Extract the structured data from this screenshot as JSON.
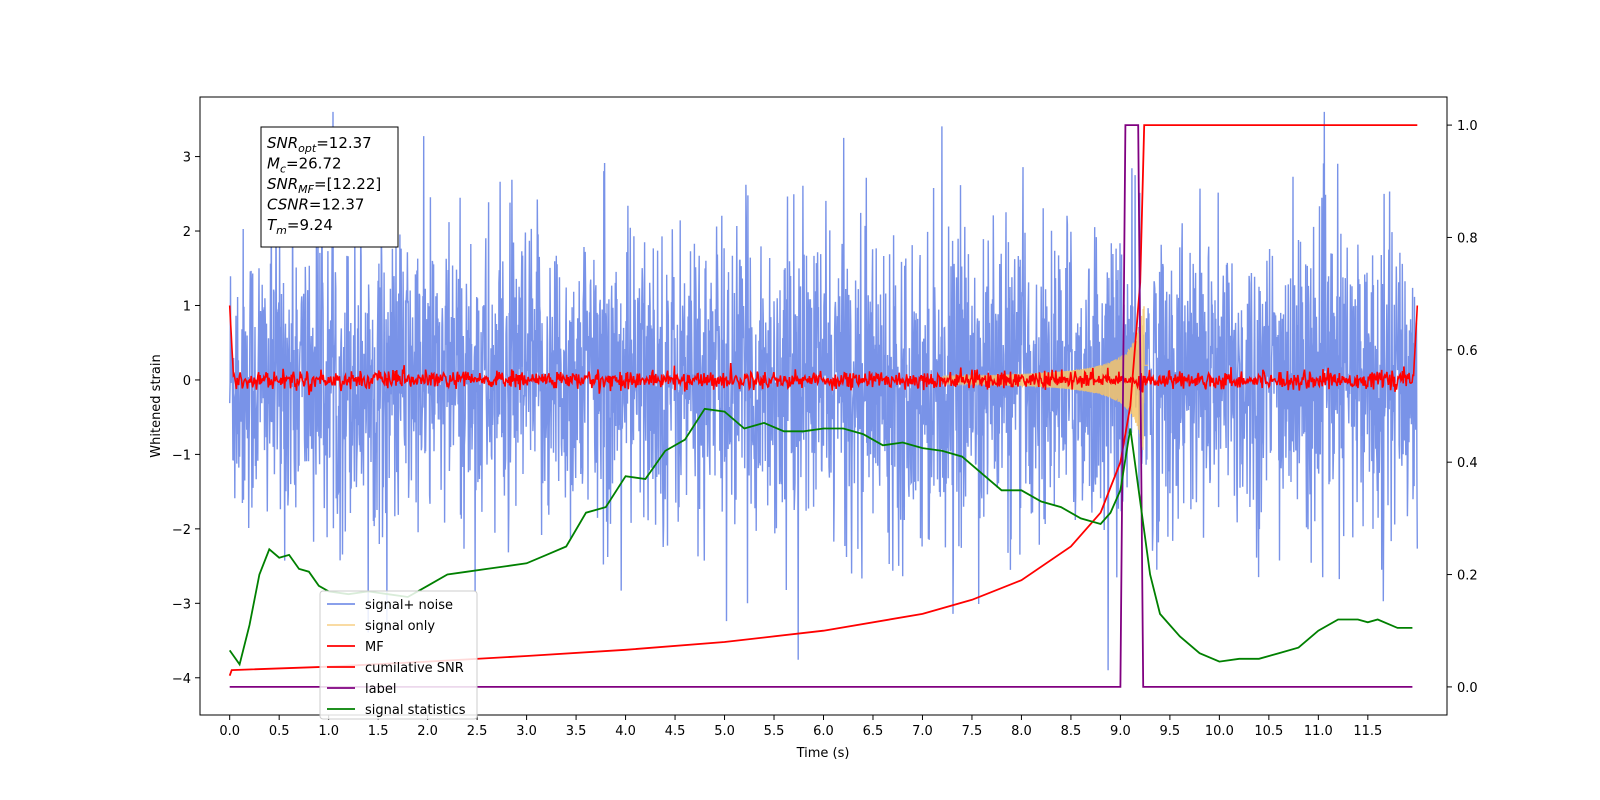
{
  "chart_data": {
    "type": "line",
    "xlabel": "Time (s)",
    "ylabel": "Whitened strain",
    "x_ticks": [
      "0.0",
      "0.5",
      "1.0",
      "1.5",
      "2.0",
      "2.5",
      "3.0",
      "3.5",
      "4.0",
      "4.5",
      "5.0",
      "5.5",
      "6.0",
      "6.5",
      "7.0",
      "7.5",
      "8.0",
      "8.5",
      "9.0",
      "9.5",
      "10.0",
      "10.5",
      "11.0",
      "11.5"
    ],
    "y_ticks_left": [
      "−4",
      "−3",
      "−2",
      "−1",
      "0",
      "1",
      "2",
      "3"
    ],
    "y_ticks_right": [
      "0.0",
      "0.2",
      "0.4",
      "0.6",
      "0.8",
      "1.0"
    ],
    "xlim": [
      -0.3,
      12.3
    ],
    "ylim_left": [
      -4.5,
      3.8
    ],
    "ylim_right": [
      -0.05,
      1.05
    ],
    "info_box": [
      {
        "base": "SNR",
        "sub": "opt",
        "rest": "=12.37"
      },
      {
        "base": "M",
        "sub": "c",
        "rest": "=26.72"
      },
      {
        "base": "SNR",
        "sub": "MF",
        "rest": "=[12.22]"
      },
      {
        "base": "CSNR",
        "sub": "",
        "rest": "=12.37"
      },
      {
        "base": "T",
        "sub": "m",
        "rest": "=9.24"
      }
    ],
    "series": [
      {
        "name": "signal+ noise",
        "color": "#6a87e6",
        "axis": "left",
        "desc": "whitened noise + signal, ~N(0,1), 0-12 s"
      },
      {
        "name": "signal only",
        "color": "#f5c46a",
        "axis": "left",
        "desc": "chirp growing toward merger at ~9.24 s"
      },
      {
        "name": "MF",
        "color": "#ff0000",
        "axis": "left",
        "desc": "matched-filter output, near 0, spikes to 1 at edges"
      },
      {
        "name": "cumilative SNR",
        "color": "#ff0000",
        "axis": "right",
        "x": [
          0.0,
          0.02,
          1,
          2,
          3,
          4,
          5,
          6,
          7,
          7.5,
          8,
          8.5,
          8.8,
          9.0,
          9.1,
          9.2,
          9.24,
          12.0
        ],
        "values": [
          0.02,
          0.03,
          0.036,
          0.045,
          0.055,
          0.066,
          0.08,
          0.1,
          0.13,
          0.155,
          0.19,
          0.25,
          0.31,
          0.4,
          0.5,
          0.72,
          1.0,
          1.0
        ]
      },
      {
        "name": "label",
        "color": "#800080",
        "axis": "right",
        "x": [
          0.0,
          9.0,
          9.05,
          9.18,
          9.23,
          11.95
        ],
        "values": [
          0,
          0,
          1,
          1,
          0,
          0
        ]
      },
      {
        "name": "signal statistics",
        "color": "#008000",
        "axis": "right",
        "x": [
          0.0,
          0.1,
          0.2,
          0.3,
          0.4,
          0.5,
          0.6,
          0.7,
          0.8,
          0.9,
          1.0,
          1.2,
          1.4,
          1.6,
          1.8,
          2.0,
          2.2,
          2.4,
          2.6,
          2.8,
          3.0,
          3.2,
          3.4,
          3.6,
          3.8,
          4.0,
          4.2,
          4.4,
          4.6,
          4.8,
          5.0,
          5.2,
          5.4,
          5.6,
          5.8,
          6.0,
          6.2,
          6.4,
          6.6,
          6.8,
          7.0,
          7.2,
          7.4,
          7.6,
          7.8,
          8.0,
          8.2,
          8.4,
          8.6,
          8.8,
          8.9,
          9.0,
          9.1,
          9.2,
          9.3,
          9.4,
          9.5,
          9.6,
          9.8,
          10.0,
          10.2,
          10.4,
          10.6,
          10.8,
          11.0,
          11.2,
          11.4,
          11.5,
          11.6,
          11.8,
          11.95
        ],
        "values": [
          0.065,
          0.04,
          0.11,
          0.2,
          0.245,
          0.23,
          0.235,
          0.21,
          0.205,
          0.18,
          0.17,
          0.165,
          0.17,
          0.165,
          0.16,
          0.18,
          0.2,
          0.205,
          0.21,
          0.215,
          0.22,
          0.235,
          0.25,
          0.31,
          0.32,
          0.375,
          0.37,
          0.42,
          0.44,
          0.495,
          0.49,
          0.46,
          0.47,
          0.455,
          0.455,
          0.46,
          0.46,
          0.45,
          0.43,
          0.435,
          0.425,
          0.42,
          0.41,
          0.38,
          0.35,
          0.35,
          0.33,
          0.32,
          0.3,
          0.29,
          0.31,
          0.35,
          0.46,
          0.33,
          0.2,
          0.13,
          0.11,
          0.09,
          0.06,
          0.045,
          0.05,
          0.05,
          0.06,
          0.07,
          0.1,
          0.12,
          0.12,
          0.115,
          0.12,
          0.105,
          0.105
        ]
      }
    ]
  }
}
